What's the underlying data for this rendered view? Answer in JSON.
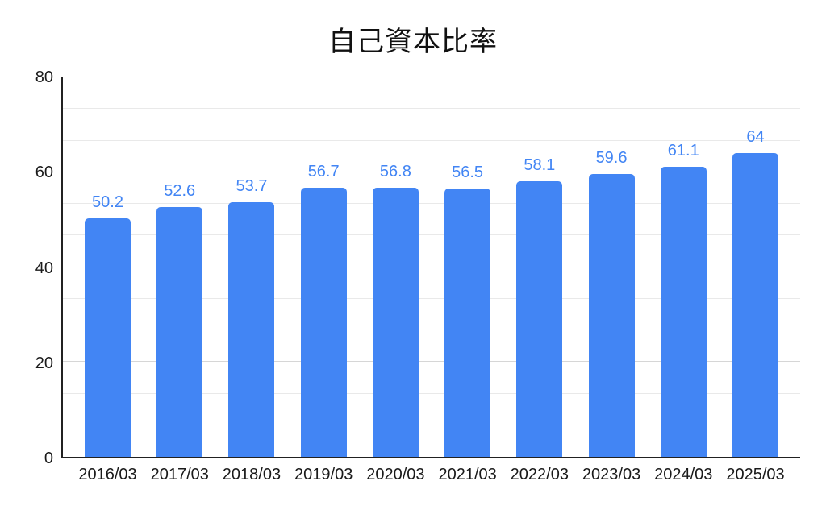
{
  "chart_data": {
    "type": "bar",
    "title": "自己資本比率",
    "categories": [
      "2016/03",
      "2017/03",
      "2018/03",
      "2019/03",
      "2020/03",
      "2021/03",
      "2022/03",
      "2023/03",
      "2024/03",
      "2025/03"
    ],
    "values": [
      50.2,
      52.6,
      53.7,
      56.7,
      56.8,
      56.5,
      58.1,
      59.6,
      61.1,
      64
    ],
    "value_labels": [
      "50.2",
      "52.6",
      "53.7",
      "56.7",
      "56.8",
      "56.5",
      "58.1",
      "59.6",
      "61.1",
      "64"
    ],
    "xlabel": "",
    "ylabel": "",
    "ylim": [
      0,
      80
    ],
    "y_ticks": [
      0,
      20,
      40,
      60,
      80
    ],
    "y_minor_divisions": 3,
    "grid": "on",
    "legend": "none",
    "colors": {
      "bar": "#4285F4",
      "value_label": "#4285F4",
      "axis": "#212121",
      "grid_major": "#d6d6d6",
      "grid_minor": "#e9e9e9",
      "text": "#1a1a1a",
      "background": "#ffffff"
    }
  }
}
